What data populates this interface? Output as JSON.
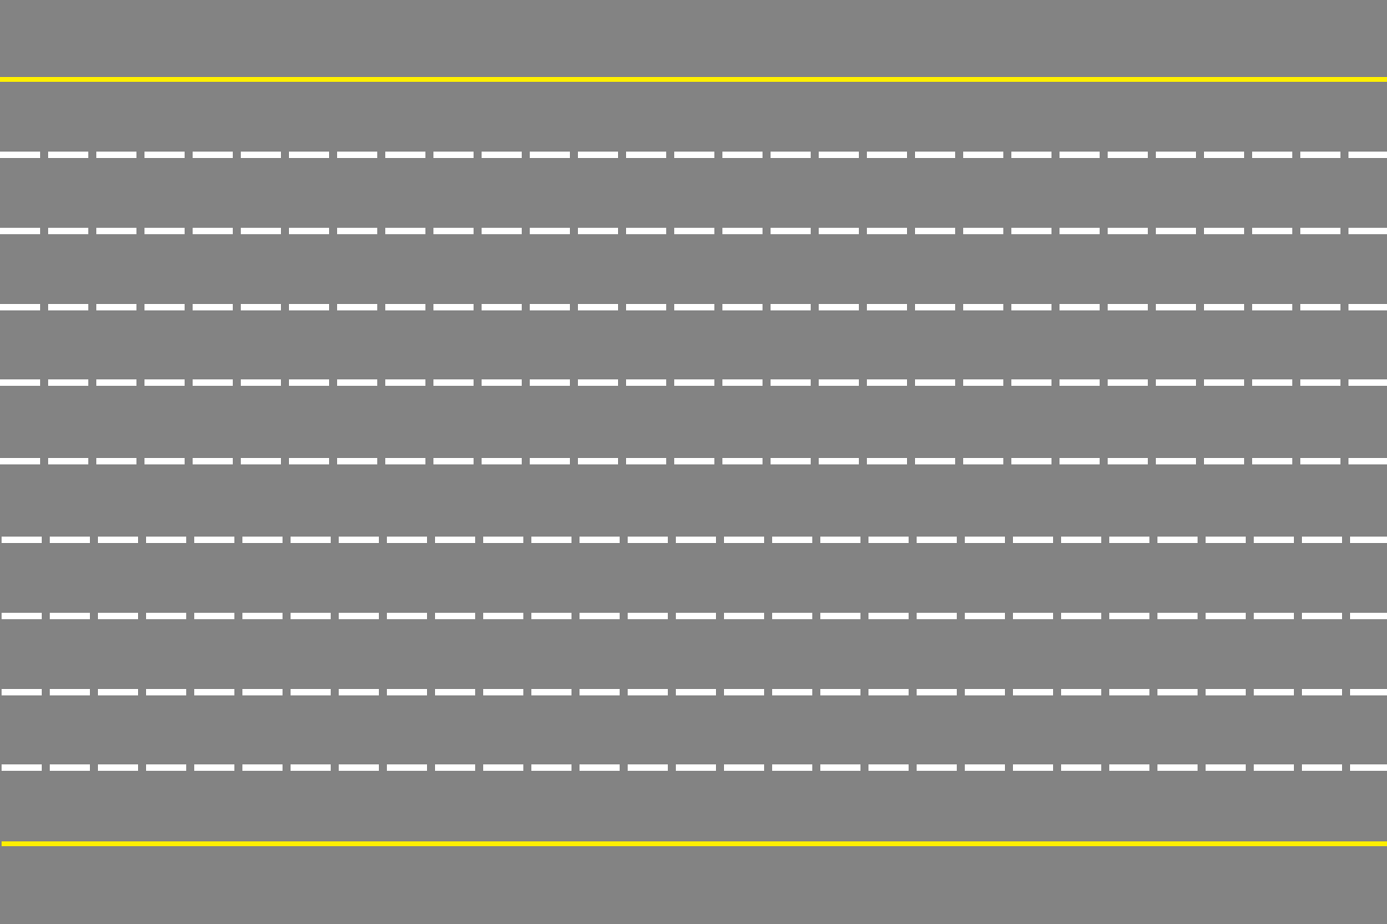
{
  "scene": {
    "type": "multi-lane road, top-down view",
    "background_color": "#838383",
    "edge_line_color": "#ffef00",
    "lane_divider_color": "#ffffff",
    "lane_divider_style": "dashed",
    "edge_lines": [
      "top",
      "bottom"
    ],
    "lane_count": 10,
    "lane_divider_count": 9
  }
}
